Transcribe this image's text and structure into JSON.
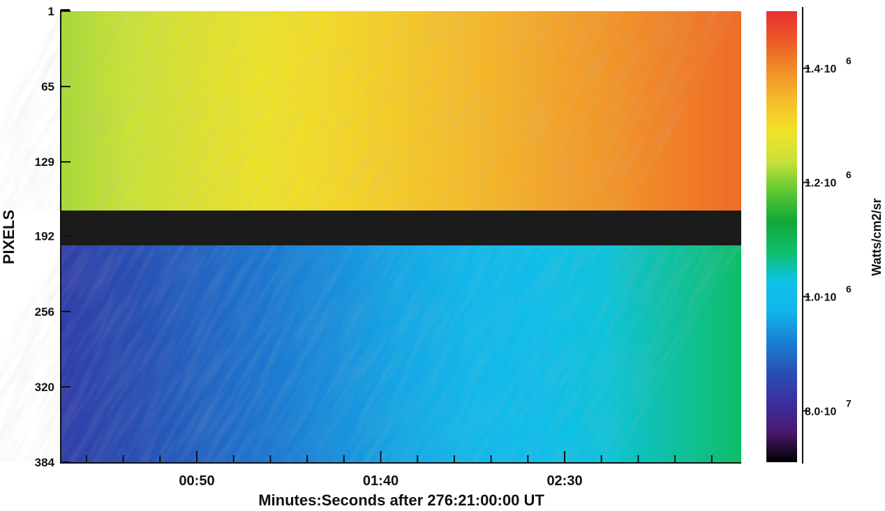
{
  "chart_data": {
    "type": "heatmap",
    "xlabel": "Minutes:Seconds after  276:21:00:00 UT",
    "ylabel": "PIXELS",
    "colorbar_label": "Watts/cm2/sr",
    "x_range_seconds": [
      13,
      198
    ],
    "x_ticks": [
      {
        "label": "00:50",
        "value": 50
      },
      {
        "label": "01:40",
        "value": 100
      },
      {
        "label": "02:30",
        "value": 150
      }
    ],
    "y_range": [
      1,
      384
    ],
    "y_ticks": [
      1,
      65,
      129,
      192,
      256,
      320,
      384
    ],
    "colorbar_range": [
      7.1e-07,
      1.5e-06
    ],
    "colorbar_ticks": [
      {
        "mantissa": "1.4·10",
        "exponent": "6",
        "value": 1.4e-06
      },
      {
        "mantissa": "1.2·10",
        "exponent": "6",
        "value": 1.2e-06
      },
      {
        "mantissa": "1.0·10",
        "exponent": "6",
        "value": 1e-06
      },
      {
        "mantissa": "8.0·10",
        "exponent": "7",
        "value": 8e-07
      }
    ],
    "gap_rows": [
      169,
      199
    ],
    "upper_band": {
      "rows": [
        1,
        168
      ],
      "left_value": 1.22e-06,
      "right_value": 1.43e-06
    },
    "lower_band": {
      "rows": [
        200,
        384
      ],
      "left_value": 8.4e-07,
      "right_value": 1.08e-06
    },
    "colormap": [
      "#000000",
      "#4b1a6e",
      "#3b2fa0",
      "#2850b4",
      "#1a7fd6",
      "#12b4ea",
      "#0ec2e8",
      "#0fbf6a",
      "#10a838",
      "#5cc832",
      "#c8e13a",
      "#f2e227",
      "#f5bd2a",
      "#f19028",
      "#ec5a28",
      "#e83030"
    ],
    "gap_color": "#1b1b1b"
  }
}
